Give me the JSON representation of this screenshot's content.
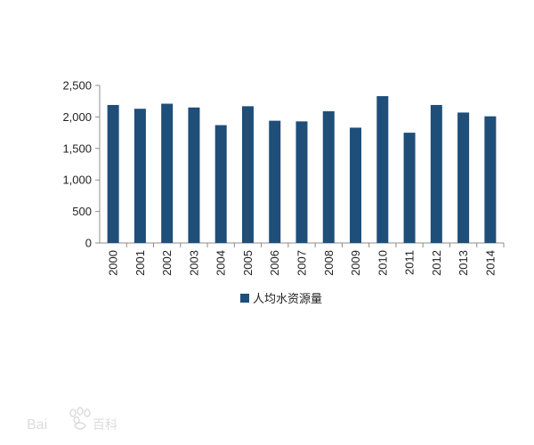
{
  "chart_data": {
    "type": "bar",
    "categories": [
      "2000",
      "2001",
      "2002",
      "2003",
      "2004",
      "2005",
      "2006",
      "2007",
      "2008",
      "2009",
      "2010",
      "2011",
      "2012",
      "2013",
      "2014"
    ],
    "series": [
      {
        "name": "人均水资源量",
        "color": "#1f4e79",
        "values": [
          2190,
          2130,
          2210,
          2150,
          1870,
          2170,
          1940,
          1930,
          2090,
          1830,
          2330,
          1750,
          2190,
          2070,
          2010
        ]
      }
    ],
    "yticks": [
      "0",
      "500",
      "1,000",
      "1,500",
      "2,000",
      "2,500"
    ],
    "ylim": [
      0,
      2500
    ],
    "grid": false,
    "legend_position": "bottom",
    "title": "",
    "xlabel": "",
    "ylabel": ""
  },
  "watermark": {
    "text": "Baidu百科"
  }
}
